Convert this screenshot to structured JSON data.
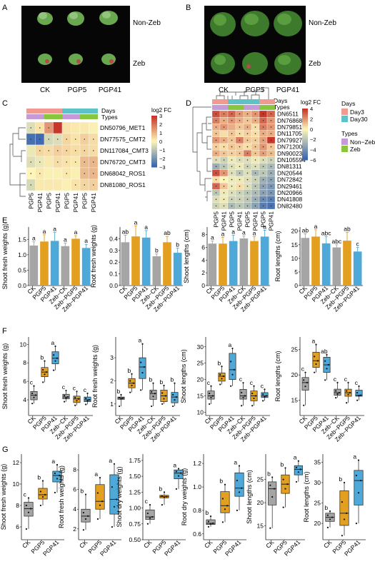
{
  "panels": {
    "A": {
      "letter": "A",
      "column_labels": [
        "CK",
        "PGP5",
        "PGP41"
      ],
      "row_labels": [
        "Non-Zeb",
        "Zeb"
      ]
    },
    "B": {
      "letter": "B",
      "column_labels": [
        "CK",
        "PGP5",
        "PGP41"
      ],
      "row_labels": [
        "Non-Zeb",
        "Zeb"
      ]
    },
    "C": {
      "letter": "C",
      "annotation_labels": [
        "Days",
        "Types"
      ],
      "genes": [
        "DN50796_MET1",
        "DN77575_CMT2",
        "DN117084_CMT3",
        "DN76720_CMT3",
        "DN68042_ROS1",
        "DN81080_ROS1"
      ],
      "columns": [
        "PGP5",
        "PGP41",
        "PGP5",
        "PGP41",
        "PGP5",
        "PGP41",
        "PGP5",
        "PGP41"
      ],
      "legend_title": "log2 FC",
      "legend_ticks": [
        "3",
        "2",
        "1",
        "0",
        "−1",
        "−2",
        "−3"
      ]
    },
    "D": {
      "letter": "D",
      "annotation_labels": [
        "Days",
        "Types"
      ],
      "genes": [
        "DN6511",
        "DN76868",
        "DN79851",
        "DN117054",
        "DN79927",
        "DN71200",
        "DN90023",
        "DN105594",
        "DN81311",
        "DN20544",
        "DN72842",
        "DN29461",
        "DN20966",
        "DN41808",
        "DN82480"
      ],
      "columns": [
        "PGP5",
        "PGP41",
        "PGP5",
        "PGP41",
        "PGP5",
        "PGP41",
        "PGP5",
        "PGP41"
      ],
      "legend_title": "log2 FC",
      "legend_ticks": [
        "4",
        "2",
        "0",
        "−2",
        "−4",
        "−6"
      ],
      "days_legend_title": "Days",
      "days_legend": [
        "Day3",
        "Day30"
      ],
      "types_legend_title": "Types",
      "types_legend": [
        "Non−Zeb",
        "Zeb"
      ]
    },
    "E": {
      "letter": "E",
      "groups": [
        "CK",
        "PGP5",
        "PGP41",
        "Zeb−CK",
        "Zeb−PGP5",
        "Zeb−PGP41"
      ],
      "charts": [
        {
          "ylabel": "Shoot fresh weights (g)",
          "ticks": [
            "0.0",
            "0.5",
            "1.0",
            "1.5"
          ],
          "ymax": 1.9,
          "values": [
            1.3,
            1.43,
            1.45,
            1.28,
            1.52,
            1.22
          ],
          "errs": [
            0.12,
            0.22,
            0.28,
            0.1,
            0.1,
            0.12
          ],
          "letters": [
            "a",
            "a",
            "a",
            "a",
            "a",
            "a"
          ]
        },
        {
          "ylabel": "Root fresh weights (g)",
          "ticks": [
            "0.0",
            "0.1",
            "0.2",
            "0.3",
            "0.4"
          ],
          "ymax": 0.5,
          "values": [
            0.37,
            0.42,
            0.41,
            0.25,
            0.37,
            0.28
          ],
          "errs": [
            0.06,
            0.09,
            0.06,
            0.02,
            0.05,
            0.04
          ],
          "letters": [
            "ab",
            "a",
            "a",
            "b",
            "ab",
            "b"
          ]
        },
        {
          "ylabel": "Shoot lengths (cm)",
          "ticks": [
            "0",
            "2",
            "4",
            "6",
            "8"
          ],
          "ymax": 9.2,
          "values": [
            6.6,
            6.6,
            7.0,
            7.4,
            7.0,
            7.7
          ],
          "errs": [
            0.4,
            1.0,
            0.9,
            0.4,
            0.7,
            1.0
          ],
          "letters": [
            "a",
            "a",
            "a",
            "a",
            "a",
            "a"
          ]
        },
        {
          "ylabel": "Root lengths (cm)",
          "ticks": [
            "0",
            "5",
            "10",
            "15",
            "20"
          ],
          "ymax": 21.5,
          "values": [
            17.5,
            18.0,
            15.5,
            14.0,
            16.5,
            12.5
          ],
          "errs": [
            1.5,
            2.5,
            2.5,
            1.0,
            3.0,
            1.5
          ],
          "letters": [
            "ab",
            "a",
            "abc",
            "abc",
            "ab",
            "c"
          ]
        }
      ]
    },
    "F": {
      "letter": "F",
      "groups": [
        "CK",
        "PGP5",
        "PGP41",
        "Zeb−CK",
        "Zeb−PGP5",
        "Zeb−PGP41"
      ],
      "charts": [
        {
          "ylabel": "Shoot fresh weights (g)",
          "ticks": [
            "4",
            "6",
            "8",
            "10"
          ],
          "ymin": 2.3,
          "ymax": 10.8,
          "letters": [
            "c",
            "b",
            "a",
            "c",
            "c",
            "c"
          ],
          "boxes": [
            [
              3.6,
              4.0,
              4.5,
              4.9,
              5.5
            ],
            [
              5.9,
              6.5,
              7.0,
              7.5,
              8.2
            ],
            [
              7.2,
              7.9,
              8.5,
              9.2,
              9.8
            ],
            [
              3.8,
              4.1,
              4.3,
              4.6,
              5.0
            ],
            [
              3.4,
              3.7,
              4.1,
              4.4,
              4.9
            ],
            [
              3.5,
              3.8,
              4.0,
              4.3,
              4.7
            ]
          ]
        },
        {
          "ylabel": "Root fresh weights (g)",
          "ticks": [
            "1",
            "2",
            "3"
          ],
          "ymin": 0.5,
          "ymax": 3.9,
          "letters": [
            "b",
            "b",
            "a",
            "b",
            "b",
            "b"
          ],
          "boxes": [
            [
              0.9,
              1.2,
              1.25,
              1.3,
              1.4
            ],
            [
              1.5,
              1.7,
              1.9,
              2.1,
              2.3
            ],
            [
              1.6,
              2.1,
              2.6,
              3.0,
              3.6
            ],
            [
              0.9,
              1.2,
              1.45,
              1.6,
              1.9
            ],
            [
              1.0,
              1.1,
              1.35,
              1.6,
              1.8
            ],
            [
              0.9,
              1.05,
              1.3,
              1.5,
              1.9
            ]
          ]
        },
        {
          "ylabel": "Shoot lengths (cm)",
          "ticks": [
            "10",
            "15",
            "20",
            "25",
            "30"
          ],
          "ymin": 9,
          "ymax": 33,
          "letters": [
            "c",
            "b",
            "a",
            "c",
            "c",
            "c"
          ],
          "boxes": [
            [
              12.5,
              14,
              15,
              16.5,
              18
            ],
            [
              18.5,
              19.5,
              21,
              22,
              24
            ],
            [
              18,
              20,
              23,
              28,
              29.5
            ],
            [
              12,
              14,
              15,
              17,
              19
            ],
            [
              12,
              13.5,
              15,
              16.5,
              18
            ],
            [
              13.5,
              14.5,
              15,
              16,
              17
            ]
          ]
        },
        {
          "ylabel": "Root lengths (cm)",
          "ticks": [
            "15",
            "20",
            "25"
          ],
          "ymin": 12,
          "ymax": 27.5,
          "letters": [
            "c",
            "a",
            "ab",
            "c",
            "c",
            "c"
          ],
          "boxes": [
            [
              14,
              17,
              18.5,
              19.5,
              20.5
            ],
            [
              20.5,
              21.5,
              22.8,
              24.5,
              26
            ],
            [
              19,
              20.5,
              22,
              23.5,
              24
            ],
            [
              15.5,
              16,
              16.5,
              17.2,
              18.5
            ],
            [
              14.5,
              15.8,
              16.5,
              17.2,
              18.5
            ],
            [
              15,
              15.8,
              16,
              17,
              17.8
            ]
          ]
        }
      ]
    },
    "G": {
      "letter": "G",
      "groups": [
        "CK",
        "PGP5",
        "PGP41"
      ],
      "charts": [
        {
          "ylabel": "Shoot fresh weights (g)",
          "ticks": [
            "6",
            "8",
            "10",
            "12"
          ],
          "ymin": 4.8,
          "ymax": 12.8,
          "letters": [
            "c",
            "b",
            "a"
          ],
          "boxes": [
            [
              5.8,
              7.0,
              7.7,
              8.3,
              8.7
            ],
            [
              8.0,
              8.6,
              9.0,
              9.6,
              10.3
            ],
            [
              9.2,
              10.2,
              10.8,
              11.2,
              11.8
            ]
          ]
        },
        {
          "ylabel": "Root fresh weights (g)",
          "ticks": [
            "2",
            "4",
            "6",
            "8"
          ],
          "ymin": 0.9,
          "ymax": 9.6,
          "letters": [
            "b",
            "a",
            "a"
          ],
          "boxes": [
            [
              1.9,
              2.7,
              3.3,
              4.0,
              5.5
            ],
            [
              3.0,
              4.0,
              4.8,
              6.5,
              7.2
            ],
            [
              2.2,
              3.5,
              5.0,
              7.5,
              8.6
            ]
          ]
        },
        {
          "ylabel": "Shoot dry weights (g)",
          "ticks": [
            "0.50",
            "0.75",
            "1.00",
            "1.25",
            "1.50",
            "1.75"
          ],
          "ymin": 0.5,
          "ymax": 1.85,
          "letters": [
            "c",
            "b",
            "a"
          ],
          "boxes": [
            [
              0.75,
              0.82,
              0.86,
              0.97,
              1.05
            ],
            [
              1.05,
              1.16,
              1.18,
              1.2,
              1.25
            ],
            [
              1.3,
              1.46,
              1.55,
              1.6,
              1.62
            ]
          ]
        },
        {
          "ylabel": "Root dry weights (g)",
          "ticks": [
            "0.6",
            "0.8",
            "1.0",
            "1.2"
          ],
          "ymin": 0.55,
          "ymax": 1.28,
          "letters": [
            "b",
            "b",
            "a"
          ],
          "boxes": [
            [
              0.66,
              0.68,
              0.69,
              0.72,
              0.75
            ],
            [
              0.7,
              0.78,
              0.84,
              0.96,
              1.02
            ],
            [
              0.8,
              0.92,
              0.99,
              1.12,
              1.18
            ]
          ]
        },
        {
          "ylabel": "Shoot lengths (cm)",
          "ticks": [
            "15",
            "20",
            "25"
          ],
          "ymin": 12,
          "ymax": 30.5,
          "letters": [
            "b",
            "b",
            "a"
          ],
          "boxes": [
            [
              14.5,
              19.5,
              23,
              24.5,
              25.5
            ],
            [
              19,
              22,
              24,
              26,
              27.5
            ],
            [
              24.5,
              26,
              27.2,
              28,
              29
            ]
          ]
        },
        {
          "ylabel": "Root lengths (cm)",
          "ticks": [
            "20",
            "25",
            "30",
            "35"
          ],
          "ymin": 16,
          "ymax": 37,
          "letters": [
            "b",
            "b",
            "a"
          ],
          "boxes": [
            [
              19,
              20.5,
              21.5,
              22.5,
              23
            ],
            [
              17,
              19.5,
              22.5,
              28,
              30
            ],
            [
              20,
              24.5,
              30.5,
              33,
              35.5
            ]
          ]
        }
      ]
    }
  },
  "colors": {
    "grey": "#a5a5a5",
    "orange": "#e39f1f",
    "blue": "#4ea8d8",
    "heat_high": "#c7352b",
    "heat_mid": "#fdf6b8",
    "heat_low": "#3a66b0",
    "day3": "#f19a8f",
    "day30": "#5ec2c7",
    "nonzeb": "#c69ad6",
    "zeb": "#88c640"
  }
}
